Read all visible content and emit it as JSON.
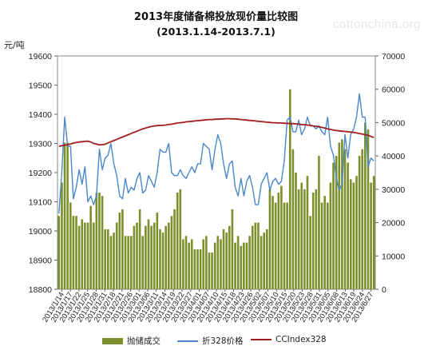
{
  "chart_data": {
    "type": "bar+line",
    "title": "2013年度储备棉投放现价量比较图",
    "subtitle": "(2013.1.14-2013.7.1)",
    "ylabel_left": "元/吨",
    "watermark": "cottonchina.org",
    "left_axis": {
      "min": 18800,
      "max": 19600,
      "step": 100,
      "ticks": [
        "18800",
        "18900",
        "19000",
        "19100",
        "19200",
        "19300",
        "19400",
        "19500",
        "19600"
      ]
    },
    "right_axis": {
      "min": 0,
      "max": 70000,
      "step": 10000,
      "ticks": [
        "0",
        "10000",
        "20000",
        "30000",
        "40000",
        "50000",
        "60000",
        "70000"
      ]
    },
    "x_labels": [
      "2013/1/14",
      "2013/1/17",
      "2013/1/22",
      "2013/1/25",
      "2013/1/28",
      "2013/1/31",
      "2013/2/18",
      "2013/2/21",
      "2013/2/26",
      "2013/3/01",
      "2013/3/06",
      "2013/3/11",
      "2013/3/14",
      "2013/3/19",
      "2013/3/22",
      "2013/3/27",
      "2013/4/01",
      "2013/4/07",
      "2013/4/10",
      "2013/4/15",
      "2013/4/18",
      "2013/4/23",
      "2013/4/26",
      "2013/5/02",
      "2013/5/07",
      "2013/5/10",
      "2013/5/15",
      "2013/5/20",
      "2013/5/23",
      "2013/5/28",
      "2013/5/31",
      "2013/6/05",
      "2013/6/08",
      "2013/6/13",
      "2013/6/19",
      "2013/6/24",
      "2013/6/27"
    ],
    "series": [
      {
        "name": "抛储成交",
        "type": "bar",
        "axis": "right",
        "color": "#7b8f2b",
        "values": [
          22000,
          32000,
          44000,
          44000,
          26000,
          22000,
          22000,
          19000,
          21000,
          20000,
          20000,
          25000,
          20000,
          29000,
          29000,
          28000,
          18000,
          18000,
          16000,
          17000,
          20000,
          23000,
          24000,
          16000,
          16000,
          16000,
          19000,
          20000,
          24000,
          16000,
          19000,
          21000,
          19000,
          20000,
          23000,
          18000,
          17000,
          19000,
          20000,
          22000,
          24000,
          29000,
          30000,
          15000,
          16000,
          14000,
          15000,
          12000,
          12000,
          12000,
          15000,
          16000,
          11000,
          11000,
          14000,
          16000,
          15000,
          18000,
          17000,
          19000,
          24000,
          14000,
          16000,
          13000,
          14000,
          14000,
          16000,
          19000,
          20000,
          20000,
          16000,
          17000,
          18000,
          30000,
          28000,
          26000,
          29000,
          31000,
          26000,
          26000,
          60000,
          42000,
          35000,
          30000,
          32000,
          30000,
          34000,
          22000,
          29000,
          30000,
          40000,
          26000,
          28000,
          26000,
          32000,
          38000,
          40000,
          44000,
          45000,
          42000,
          38000,
          33000,
          32000,
          34000,
          40000,
          42000,
          50000,
          48000,
          32000,
          34000
        ]
      },
      {
        "name": "折328价格",
        "type": "line",
        "axis": "left",
        "color": "#4a87c9",
        "values": [
          19060,
          19200,
          19390,
          19290,
          19290,
          19110,
          19150,
          19210,
          19160,
          19220,
          19100,
          19120,
          19090,
          19120,
          19280,
          19210,
          19250,
          19260,
          19300,
          19230,
          19190,
          19120,
          19110,
          19180,
          19130,
          19150,
          19140,
          19180,
          19200,
          19130,
          19140,
          19190,
          19170,
          19150,
          19200,
          19280,
          19270,
          19270,
          19300,
          19200,
          19190,
          19190,
          19210,
          19190,
          19180,
          19200,
          19220,
          19200,
          19230,
          19230,
          19300,
          19290,
          19280,
          19210,
          19280,
          19330,
          19300,
          19230,
          19180,
          19230,
          19240,
          19150,
          19120,
          19180,
          19120,
          19170,
          19190,
          19150,
          19090,
          19090,
          19160,
          19180,
          19200,
          19140,
          19170,
          19180,
          19160,
          19170,
          19240,
          19380,
          19390,
          19340,
          19340,
          19380,
          19330,
          19350,
          19390,
          19360,
          19360,
          19350,
          19360,
          19340,
          19330,
          19390,
          19290,
          19260,
          19180,
          19140,
          19160,
          19330,
          19250,
          19330,
          19350,
          19390,
          19470,
          19390,
          19390,
          19220,
          19250,
          19240
        ]
      },
      {
        "name": "CCIndex328",
        "type": "line",
        "axis": "left",
        "color": "#a01d1d",
        "values": [
          19290,
          19292,
          19294,
          19296,
          19298,
          19301,
          19303,
          19305,
          19306,
          19307,
          19308,
          19305,
          19300,
          19298,
          19295,
          19296,
          19297,
          19302,
          19306,
          19310,
          19314,
          19318,
          19322,
          19326,
          19330,
          19334,
          19338,
          19342,
          19346,
          19350,
          19353,
          19356,
          19358,
          19360,
          19361,
          19362,
          19362,
          19363,
          19365,
          19366,
          19368,
          19370,
          19371,
          19372,
          19374,
          19375,
          19376,
          19377,
          19378,
          19379,
          19380,
          19381,
          19382,
          19382,
          19383,
          19383,
          19384,
          19384,
          19385,
          19385,
          19384,
          19384,
          19383,
          19382,
          19381,
          19380,
          19379,
          19378,
          19377,
          19376,
          19375,
          19374,
          19373,
          19372,
          19371,
          19371,
          19370,
          19370,
          19369,
          19369,
          19368,
          19368,
          19367,
          19366,
          19365,
          19364,
          19363,
          19362,
          19360,
          19359,
          19357,
          19355,
          19353,
          19350,
          19348,
          19346,
          19344,
          19343,
          19342,
          19341,
          19340,
          19339,
          19338,
          19336,
          19334,
          19332,
          19330,
          19328,
          19324,
          19320
        ]
      }
    ]
  }
}
